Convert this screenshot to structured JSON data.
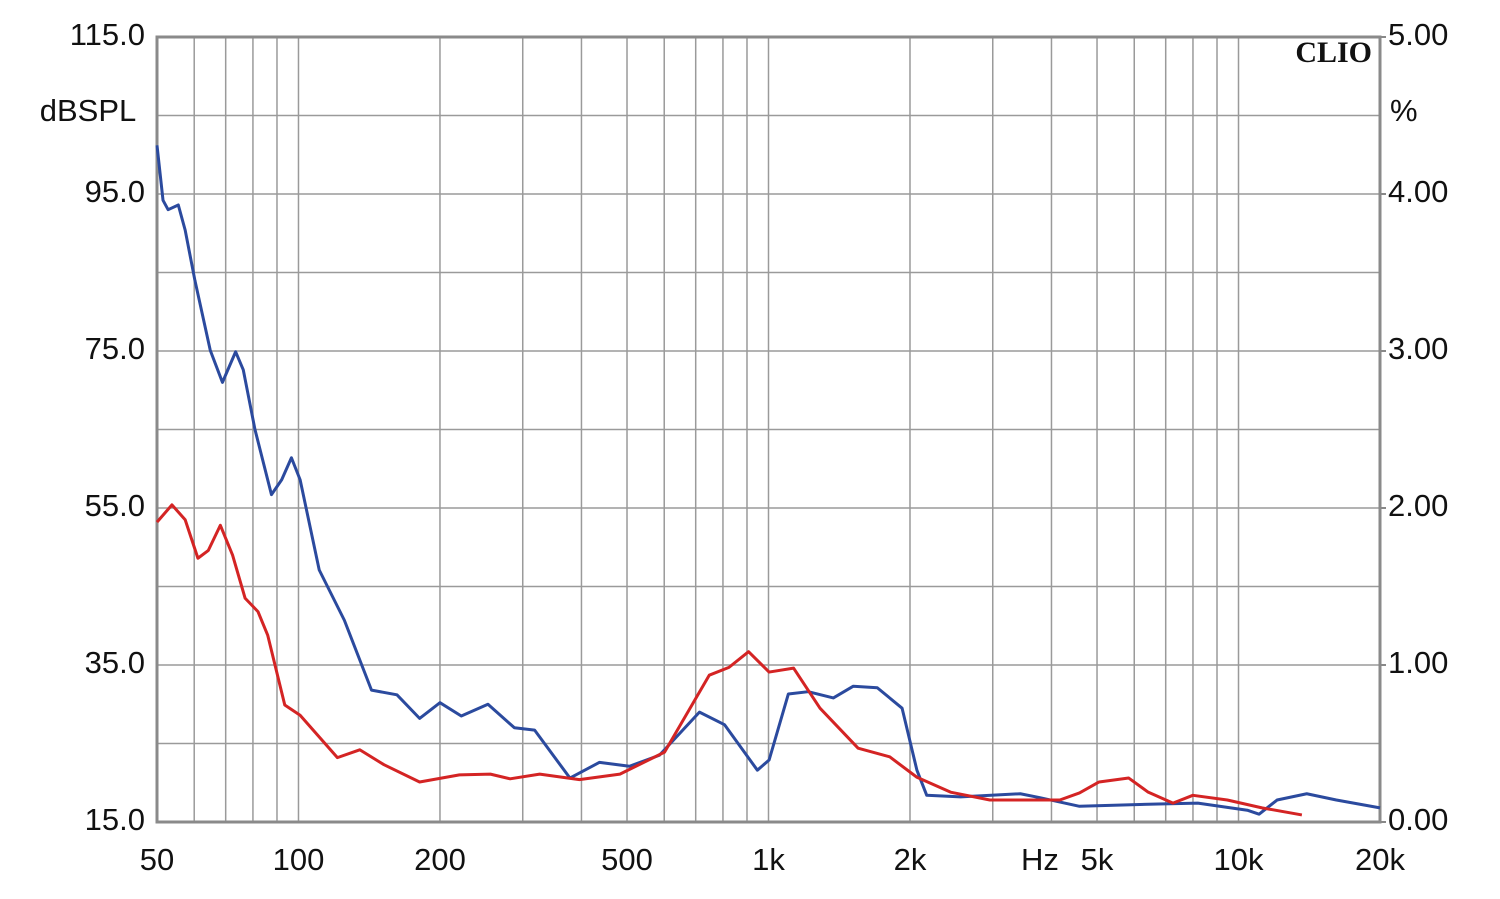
{
  "chart_data": {
    "type": "line",
    "y_label": "dBSPL",
    "y2_label": "%",
    "x_label": "Hz",
    "watermark": "CLIO",
    "xlog": true,
    "grid": true,
    "xlim": [
      50,
      20000
    ],
    "xticks": [
      50,
      100,
      200,
      500,
      {
        "value": 1000,
        "label": "1k"
      },
      {
        "value": 2000,
        "label": "2k"
      },
      {
        "value": 5000,
        "label": "5k"
      },
      {
        "value": 10000,
        "label": "10k"
      },
      {
        "value": 20000,
        "label": "20k"
      }
    ],
    "xminorticks": [
      60,
      70,
      80,
      90,
      300,
      400,
      600,
      700,
      800,
      900,
      3000,
      4000,
      6000,
      7000,
      8000,
      9000
    ],
    "ylim": [
      15,
      115
    ],
    "yticks": [
      {
        "value": 15,
        "label": "15.0"
      },
      {
        "value": 35,
        "label": "35.0"
      },
      {
        "value": 55,
        "label": "55.0"
      },
      {
        "value": 75,
        "label": "75.0"
      },
      {
        "value": 95,
        "label": "95.0"
      },
      {
        "value": 115,
        "label": "115.0"
      }
    ],
    "yminorticks": [
      25,
      45,
      65,
      85,
      105
    ],
    "y2lim": [
      0,
      5
    ],
    "y2ticks": [
      {
        "value": 0,
        "label": "0.00"
      },
      {
        "value": 1,
        "label": "1.00"
      },
      {
        "value": 2,
        "label": "2.00"
      },
      {
        "value": 3,
        "label": "3.00"
      },
      {
        "value": 4,
        "label": "4.00"
      },
      {
        "value": 5,
        "label": "5.00"
      }
    ],
    "series": [
      {
        "color": "#2b4a9e",
        "x": [
          50,
          51.5,
          52.8,
          55.5,
          57.4,
          60.2,
          64.9,
          68.9,
          73.5,
          76.3,
          80.8,
          87.6,
          92.1,
          96.6,
          100.8,
          110.7,
          125.2,
          143,
          162,
          181,
          200,
          222,
          253,
          288,
          318,
          378,
          437,
          506,
          586,
          713,
          806,
          947,
          1003,
          1102,
          1215,
          1374,
          1515,
          1704,
          1924,
          2069,
          2171,
          2563,
          3434,
          3781,
          4588,
          6757,
          8193,
          10440,
          11060,
          12080,
          13970,
          16150,
          20000
        ],
        "values": [
          101.2,
          94.2,
          93,
          93.6,
          90.4,
          84,
          75.1,
          71,
          74.9,
          72.6,
          65,
          56.7,
          58.6,
          61.4,
          58.6,
          47.1,
          40.7,
          31.8,
          31.2,
          28.2,
          30.2,
          28.5,
          30,
          27,
          26.7,
          20.6,
          22.6,
          22.1,
          23.5,
          29,
          27.4,
          21.6,
          22.9,
          31.3,
          31.6,
          30.8,
          32.3,
          32.1,
          29.5,
          21.6,
          18.4,
          18.2,
          18.6,
          18.1,
          17,
          17.3,
          17.4,
          16.5,
          16,
          17.8,
          18.6,
          17.8,
          16.8
        ]
      },
      {
        "color": "#d42424",
        "x": [
          50,
          53.8,
          57.4,
          61.1,
          64.3,
          68.2,
          72.4,
          77,
          82,
          86,
          93.5,
          100.8,
          109.7,
          121,
          135,
          152,
          181,
          220,
          256,
          282,
          326,
          396,
          483,
          601,
          748,
          824,
          907,
          1003,
          1131,
          1287,
          1551,
          1811,
          2069,
          2440,
          2958,
          4167,
          4588,
          5050,
          5840,
          6424,
          7254,
          7996,
          9465,
          11220,
          13640
        ],
        "values": [
          53.2,
          55.4,
          53.5,
          48.6,
          49.6,
          52.8,
          49,
          43.5,
          41.8,
          38.8,
          29.9,
          28.6,
          26.1,
          23.2,
          24.2,
          22.3,
          20.1,
          21,
          21.1,
          20.5,
          21.1,
          20.4,
          21.1,
          23.9,
          33.7,
          34.7,
          36.7,
          34.1,
          34.6,
          29.5,
          24.4,
          23.3,
          20.7,
          18.8,
          17.8,
          17.8,
          18.7,
          20.1,
          20.6,
          18.8,
          17.4,
          18.4,
          17.8,
          16.8,
          15.9
        ]
      }
    ]
  }
}
